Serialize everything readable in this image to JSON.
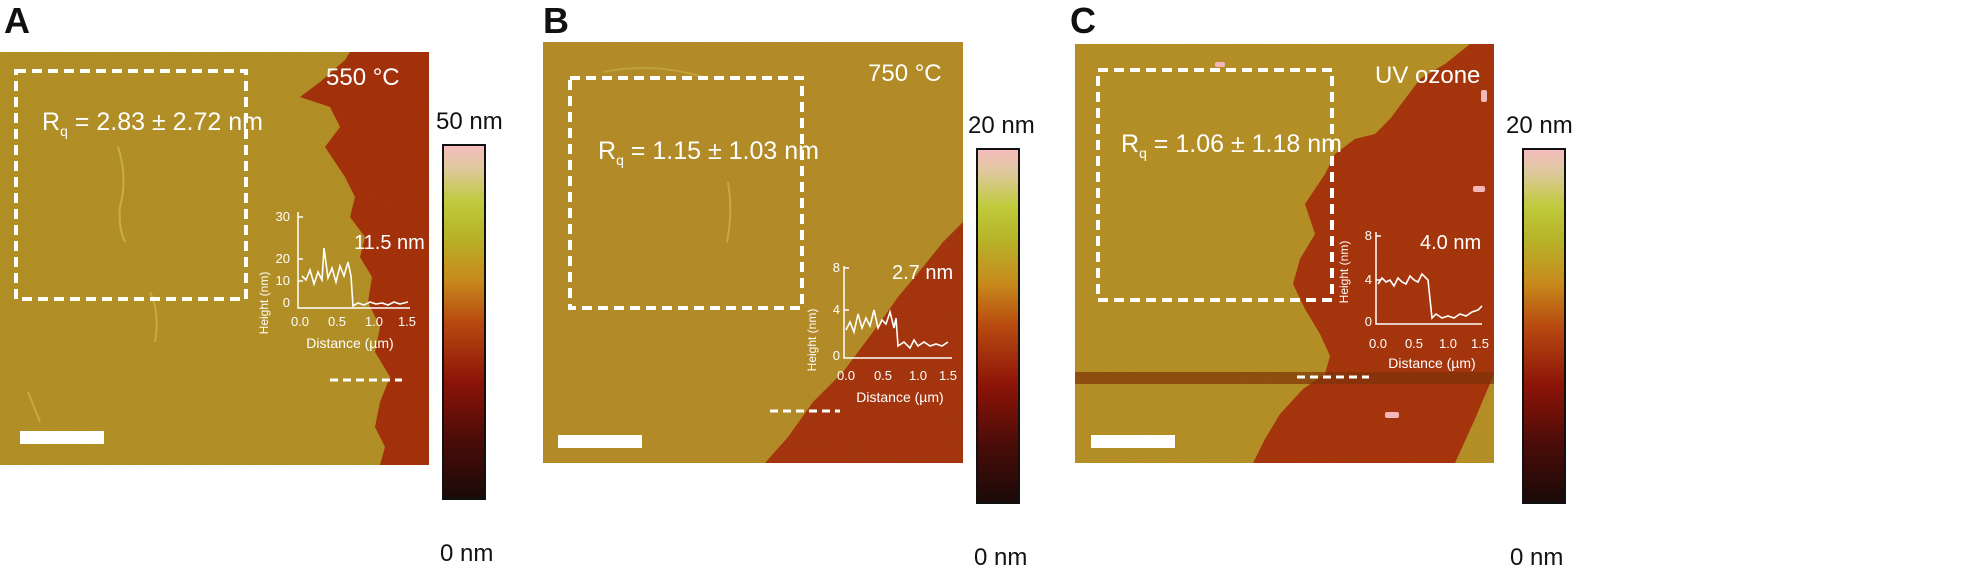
{
  "panels": [
    {
      "letter": "A",
      "temperature_label": "550 °C",
      "rq_symbol": "R",
      "rq_sub": "q",
      "rq_value": " = 2.83 ± 2.72 nm",
      "inset": {
        "step_label": "11.5 nm",
        "y_axis_label": "Height (nm)",
        "x_axis_label": "Distance (µm)",
        "y_ticks": [
          "0",
          "10",
          "20",
          "30"
        ],
        "x_ticks": [
          "0.0",
          "0.5",
          "1.0",
          "1.5"
        ]
      },
      "colorbar": {
        "top_label": "50 nm",
        "bottom_label": "0 nm"
      }
    },
    {
      "letter": "B",
      "temperature_label": "750 °C",
      "rq_symbol": "R",
      "rq_sub": "q",
      "rq_value": " = 1.15 ± 1.03 nm",
      "inset": {
        "step_label": "2.7 nm",
        "y_axis_label": "Height (nm)",
        "x_axis_label": "Distance (µm)",
        "y_ticks": [
          "0",
          "4",
          "8"
        ],
        "x_ticks": [
          "0.0",
          "0.5",
          "1.0",
          "1.5"
        ]
      },
      "colorbar": {
        "top_label": "20 nm",
        "bottom_label": "0 nm"
      }
    },
    {
      "letter": "C",
      "temperature_label": "UV ozone",
      "rq_symbol": "R",
      "rq_sub": "q",
      "rq_value": " = 1.06 ± 1.18 nm",
      "inset": {
        "step_label": "4.0 nm",
        "y_axis_label": "Height (nm)",
        "x_axis_label": "Distance (µm)",
        "y_ticks": [
          "0",
          "4",
          "8"
        ],
        "x_ticks": [
          "0.0",
          "0.5",
          "1.0",
          "1.5"
        ]
      },
      "colorbar": {
        "top_label": "20 nm",
        "bottom_label": "0 nm"
      }
    }
  ],
  "colors": {
    "film": "#b49029",
    "substrate": "#a52a0c",
    "annotation": "#ffffff"
  }
}
